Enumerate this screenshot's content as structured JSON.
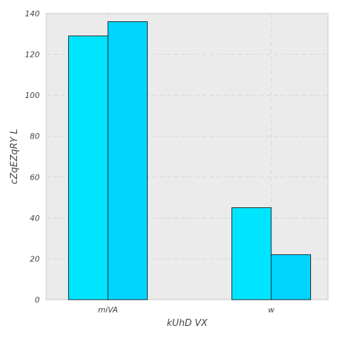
{
  "chart_data": {
    "type": "bar",
    "title": "",
    "xlabel": "kUhD VX",
    "ylabel": "cZqEZqRY L",
    "categories": [
      "miVA",
      "w"
    ],
    "series": [
      {
        "color": "#00e5ff",
        "values": [
          129,
          45
        ]
      },
      {
        "color": "#00d4ff",
        "values": [
          136,
          22
        ]
      }
    ],
    "ylim": [
      0,
      140
    ],
    "yticks": [
      "0",
      "20",
      "40",
      "60",
      "80",
      "100",
      "120",
      "140"
    ],
    "grid": true,
    "legend": "none"
  },
  "colors": {
    "plot_background": "#ebebeb",
    "grid": "#d9d9d9",
    "bar_edge": "#000000"
  }
}
